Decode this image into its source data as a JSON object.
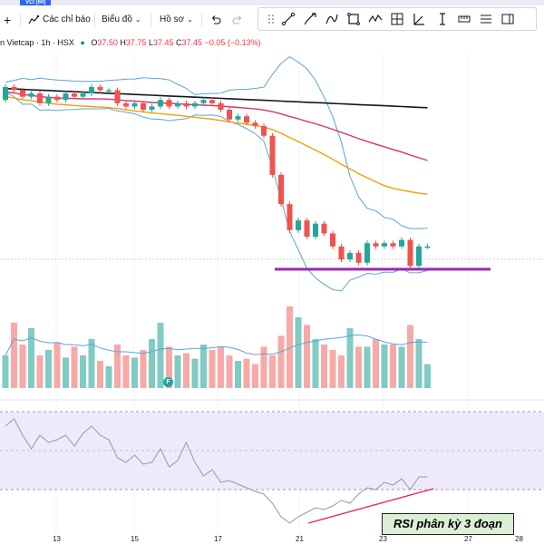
{
  "tab": {
    "label": "VCI (60)"
  },
  "toolbar": {
    "indicators_label": "Các chỉ báo",
    "charts_label": "Biểu đồ",
    "profile_label": "Hồ sơ"
  },
  "legend": {
    "symbol": "n Vietcap · 1h · HSX",
    "open_label": "O",
    "open": "37.50",
    "high_label": "H",
    "high": "37.75",
    "low_label": "L",
    "low": "37.45",
    "close_label": "C",
    "close": "37.45",
    "change": "−0.05 (−0.13%)"
  },
  "annotation": {
    "text": "RSI phân kỳ 3 đoạn"
  },
  "marker": {
    "label": "F"
  },
  "colors": {
    "up": "#26a69a",
    "down": "#ef5350",
    "rsi_band": "#efeafb",
    "rsi_line": "#7e57c2"
  },
  "chart_data": {
    "type": "candlestick",
    "x_ticks": [
      "13",
      "15",
      "17",
      "21",
      "23",
      "27",
      "28"
    ],
    "candles": [
      {
        "o": 37.9,
        "c": 38.3
      },
      {
        "o": 38.3,
        "c": 38.2
      },
      {
        "o": 38.2,
        "c": 38.0
      },
      {
        "o": 38.0,
        "c": 38.1
      },
      {
        "o": 38.1,
        "c": 37.8
      },
      {
        "o": 37.8,
        "c": 38.0
      },
      {
        "o": 38.0,
        "c": 37.9
      },
      {
        "o": 37.9,
        "c": 38.1
      },
      {
        "o": 38.1,
        "c": 38.0
      },
      {
        "o": 38.0,
        "c": 38.1
      },
      {
        "o": 38.1,
        "c": 38.3
      },
      {
        "o": 38.3,
        "c": 38.2
      },
      {
        "o": 38.2,
        "c": 38.2
      },
      {
        "o": 38.2,
        "c": 37.8
      },
      {
        "o": 37.8,
        "c": 37.7
      },
      {
        "o": 37.7,
        "c": 37.8
      },
      {
        "o": 37.8,
        "c": 37.6
      },
      {
        "o": 37.6,
        "c": 37.7
      },
      {
        "o": 37.7,
        "c": 37.9
      },
      {
        "o": 37.9,
        "c": 37.7
      },
      {
        "o": 37.7,
        "c": 37.8
      },
      {
        "o": 37.8,
        "c": 37.7
      },
      {
        "o": 37.7,
        "c": 37.8
      },
      {
        "o": 37.8,
        "c": 37.9
      },
      {
        "o": 37.9,
        "c": 37.8
      },
      {
        "o": 37.8,
        "c": 37.6
      },
      {
        "o": 37.6,
        "c": 37.3
      },
      {
        "o": 37.3,
        "c": 37.4
      },
      {
        "o": 37.4,
        "c": 37.2
      },
      {
        "o": 37.2,
        "c": 37.1
      },
      {
        "o": 37.1,
        "c": 36.8
      },
      {
        "o": 36.8,
        "c": 35.6
      },
      {
        "o": 35.6,
        "c": 34.7
      },
      {
        "o": 34.7,
        "c": 33.9
      },
      {
        "o": 33.9,
        "c": 34.2
      },
      {
        "o": 34.2,
        "c": 33.7
      },
      {
        "o": 33.7,
        "c": 34.1
      },
      {
        "o": 34.1,
        "c": 33.8
      },
      {
        "o": 33.8,
        "c": 33.4
      },
      {
        "o": 33.4,
        "c": 33.0
      },
      {
        "o": 33.0,
        "c": 33.2
      },
      {
        "o": 33.2,
        "c": 32.9
      },
      {
        "o": 32.9,
        "c": 33.5
      },
      {
        "o": 33.5,
        "c": 33.4
      },
      {
        "o": 33.4,
        "c": 33.5
      },
      {
        "o": 33.5,
        "c": 33.4
      },
      {
        "o": 33.4,
        "c": 33.6
      },
      {
        "o": 33.6,
        "c": 32.8
      },
      {
        "o": 32.8,
        "c": 33.4
      },
      {
        "o": 33.4,
        "c": 33.4
      }
    ],
    "volume": [
      30,
      60,
      40,
      55,
      30,
      35,
      42,
      28,
      38,
      30,
      45,
      25,
      20,
      40,
      30,
      28,
      35,
      45,
      60,
      38,
      30,
      32,
      27,
      40,
      35,
      38,
      30,
      25,
      27,
      22,
      38,
      30,
      48,
      75,
      65,
      58,
      45,
      40,
      35,
      30,
      55,
      38,
      38,
      45,
      40,
      40,
      38,
      58,
      45,
      22
    ]
  }
}
